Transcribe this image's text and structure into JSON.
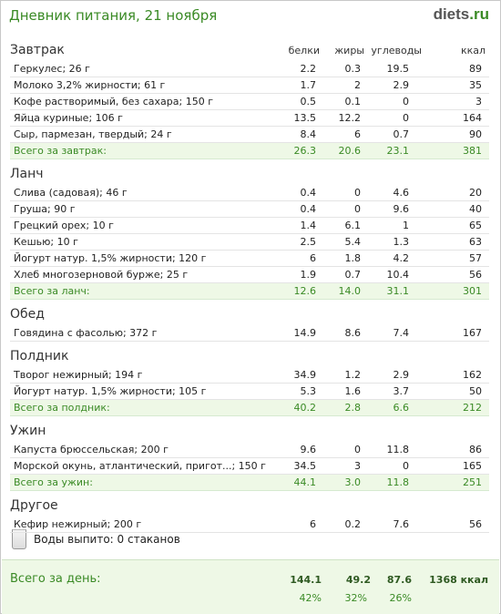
{
  "header": {
    "title": "Дневник питания, 21 ноября",
    "logo_main": "diets",
    "logo_tld": ".ru"
  },
  "columns": {
    "protein": "белки",
    "fat": "жиры",
    "carbs": "углеводы",
    "kcal": "ккал"
  },
  "sections": [
    {
      "title": "Завтрак",
      "items": [
        {
          "name": "Геркулес; 26 г",
          "protein": "2.2",
          "fat": "0.3",
          "carbs": "19.5",
          "kcal": "89"
        },
        {
          "name": "Молоко 3,2% жирности; 61 г",
          "protein": "1.7",
          "fat": "2",
          "carbs": "2.9",
          "kcal": "35"
        },
        {
          "name": "Кофе растворимый, без сахара; 150 г",
          "protein": "0.5",
          "fat": "0.1",
          "carbs": "0",
          "kcal": "3"
        },
        {
          "name": "Яйца куриные; 106 г",
          "protein": "13.5",
          "fat": "12.2",
          "carbs": "0",
          "kcal": "164"
        },
        {
          "name": "Сыр, пармезан, твердый; 24 г",
          "protein": "8.4",
          "fat": "6",
          "carbs": "0.7",
          "kcal": "90"
        }
      ],
      "total": {
        "name": "Всего за завтрак:",
        "protein": "26.3",
        "fat": "20.6",
        "carbs": "23.1",
        "kcal": "381"
      }
    },
    {
      "title": "Ланч",
      "items": [
        {
          "name": "Слива (садовая); 46 г",
          "protein": "0.4",
          "fat": "0",
          "carbs": "4.6",
          "kcal": "20"
        },
        {
          "name": "Груша; 90 г",
          "protein": "0.4",
          "fat": "0",
          "carbs": "9.6",
          "kcal": "40"
        },
        {
          "name": "Грецкий орех; 10 г",
          "protein": "1.4",
          "fat": "6.1",
          "carbs": "1",
          "kcal": "65"
        },
        {
          "name": "Кешью; 10 г",
          "protein": "2.5",
          "fat": "5.4",
          "carbs": "1.3",
          "kcal": "63"
        },
        {
          "name": "Йогурт натур. 1,5% жирности; 120 г",
          "protein": "6",
          "fat": "1.8",
          "carbs": "4.2",
          "kcal": "57"
        },
        {
          "name": "Хлеб многозерновой бурже; 25 г",
          "protein": "1.9",
          "fat": "0.7",
          "carbs": "10.4",
          "kcal": "56"
        }
      ],
      "total": {
        "name": "Всего за ланч:",
        "protein": "12.6",
        "fat": "14.0",
        "carbs": "31.1",
        "kcal": "301"
      }
    },
    {
      "title": "Обед",
      "items": [
        {
          "name": "Говядина с фасолью; 372 г",
          "protein": "14.9",
          "fat": "8.6",
          "carbs": "7.4",
          "kcal": "167"
        }
      ]
    },
    {
      "title": "Полдник",
      "items": [
        {
          "name": "Творог нежирный; 194 г",
          "protein": "34.9",
          "fat": "1.2",
          "carbs": "2.9",
          "kcal": "162"
        },
        {
          "name": "Йогурт натур. 1,5% жирности; 105 г",
          "protein": "5.3",
          "fat": "1.6",
          "carbs": "3.7",
          "kcal": "50"
        }
      ],
      "total": {
        "name": "Всего за полдник:",
        "protein": "40.2",
        "fat": "2.8",
        "carbs": "6.6",
        "kcal": "212"
      }
    },
    {
      "title": "Ужин",
      "items": [
        {
          "name": "Капуста брюссельская; 200 г",
          "protein": "9.6",
          "fat": "0",
          "carbs": "11.8",
          "kcal": "86"
        },
        {
          "name": "Морской окунь, атлантический, пригот...; 150 г",
          "protein": "34.5",
          "fat": "3",
          "carbs": "0",
          "kcal": "165"
        }
      ],
      "total": {
        "name": "Всего за ужин:",
        "protein": "44.1",
        "fat": "3.0",
        "carbs": "11.8",
        "kcal": "251"
      }
    },
    {
      "title": "Другое",
      "items": [
        {
          "name": "Кефир нежирный; 200 г",
          "protein": "6",
          "fat": "0.2",
          "carbs": "7.6",
          "kcal": "56"
        }
      ]
    }
  ],
  "water": {
    "icon": "glass-icon",
    "label": "Воды выпито: 0 стаканов"
  },
  "day_total": {
    "title": "Всего за день:",
    "protein": "144.1",
    "fat": "49.2",
    "carbs": "87.6",
    "kcal": "1368 ккал",
    "protein_pct": "42%",
    "fat_pct": "32%",
    "carbs_pct": "26%"
  },
  "colors": {
    "accent_green": "#3a8a25",
    "total_row_bg": "#eef8e6"
  }
}
